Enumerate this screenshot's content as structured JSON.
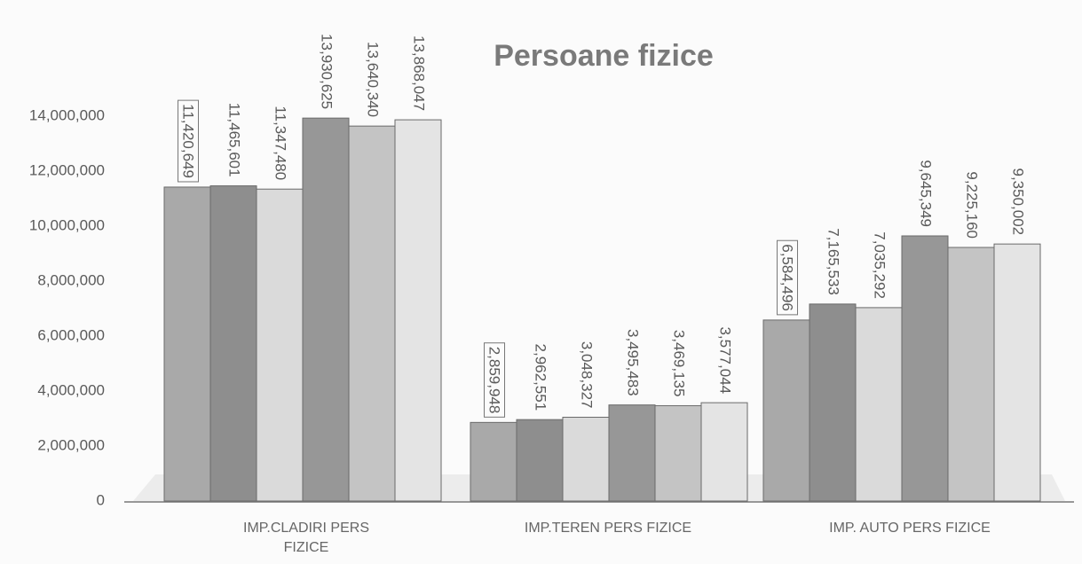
{
  "chart_data": {
    "type": "bar",
    "title": "Persoane fizice",
    "categories": [
      "IMP.CLADIRI PERS FIZICE",
      "IMP.TEREN PERS FIZICE",
      "IMP. AUTO PERS FIZICE"
    ],
    "series": [
      {
        "color": "#a9a9a9",
        "values": [
          11420649,
          2859948,
          6584496
        ],
        "value_labels": [
          "11,420,649",
          "2,859,948",
          "6,584,496"
        ]
      },
      {
        "color": "#8e8e8e",
        "values": [
          11465601,
          2962551,
          7165533
        ],
        "value_labels": [
          "11,465,601",
          "2,962,551",
          "7,165,533"
        ]
      },
      {
        "color": "#dadada",
        "values": [
          11347480,
          3048327,
          7035292
        ],
        "value_labels": [
          "11,347,480",
          "3,048,327",
          "7,035,292"
        ]
      },
      {
        "color": "#979797",
        "values": [
          13930625,
          3495483,
          9645349
        ],
        "value_labels": [
          "13,930,625",
          "3,495,483",
          "9,645,349"
        ]
      },
      {
        "color": "#c4c4c4",
        "values": [
          13640340,
          3469135,
          9225160
        ],
        "value_labels": [
          "13,640,340",
          "3,469,135",
          "9,225,160"
        ]
      },
      {
        "color": "#e4e4e4",
        "values": [
          13868047,
          3577044,
          9350002
        ],
        "value_labels": [
          "13,868,047",
          "3,577,044",
          "9,350,002"
        ]
      }
    ],
    "ylim": [
      0,
      14000000
    ],
    "yticks": [
      0,
      {
        "value": 2000000,
        "label": "2,000,000"
      },
      {
        "value": 4000000,
        "label": "4,000,000"
      },
      {
        "value": 6000000,
        "label": "6,000,000"
      },
      {
        "value": 8000000,
        "label": "8,000,000"
      },
      {
        "value": 10000000,
        "label": "10,000,000"
      },
      {
        "value": 12000000,
        "label": "12,000,000"
      },
      {
        "value": 14000000,
        "label": "14,000,000"
      }
    ],
    "grid": false
  }
}
